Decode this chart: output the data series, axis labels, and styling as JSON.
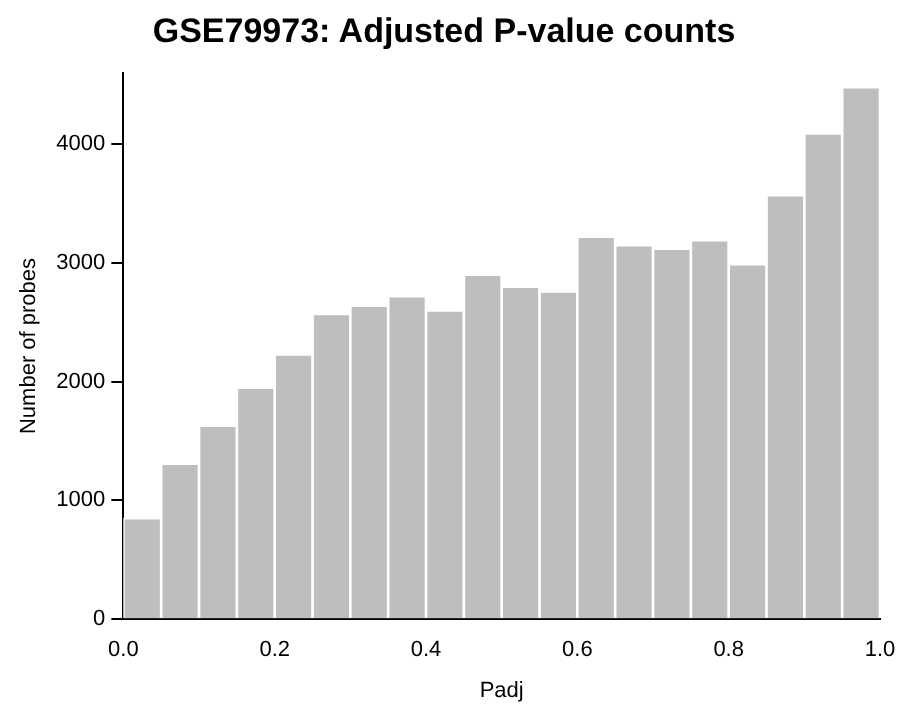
{
  "chart_data": {
    "type": "histogram",
    "title": "GSE79973: Adjusted P-value counts",
    "xlabel": "Padj",
    "ylabel": "Number of probes",
    "bins": [
      0,
      0.05,
      0.1,
      0.15,
      0.2,
      0.25,
      0.3,
      0.35,
      0.4,
      0.45,
      0.5,
      0.55,
      0.6,
      0.65,
      0.7,
      0.75,
      0.8,
      0.85,
      0.9,
      0.95,
      1
    ],
    "values": [
      850,
      1310,
      1630,
      1950,
      2230,
      2570,
      2640,
      2720,
      2600,
      2900,
      2800,
      2760,
      3220,
      3150,
      3120,
      3190,
      2990,
      3570,
      4090,
      4480
    ],
    "color": "#bebebe",
    "xlim": [
      0,
      1
    ],
    "xticks": [
      {
        "value": 0,
        "label": "0.0"
      },
      {
        "value": 0.2,
        "label": "0.2"
      },
      {
        "value": 0.4,
        "label": "0.4"
      },
      {
        "value": 0.6,
        "label": "0.6"
      },
      {
        "value": 0.8,
        "label": "0.8"
      },
      {
        "value": 1,
        "label": "1.0"
      }
    ],
    "ylim": [
      0,
      4600
    ],
    "yticks": [
      0,
      1000,
      2000,
      3000,
      4000
    ],
    "grid": false
  }
}
